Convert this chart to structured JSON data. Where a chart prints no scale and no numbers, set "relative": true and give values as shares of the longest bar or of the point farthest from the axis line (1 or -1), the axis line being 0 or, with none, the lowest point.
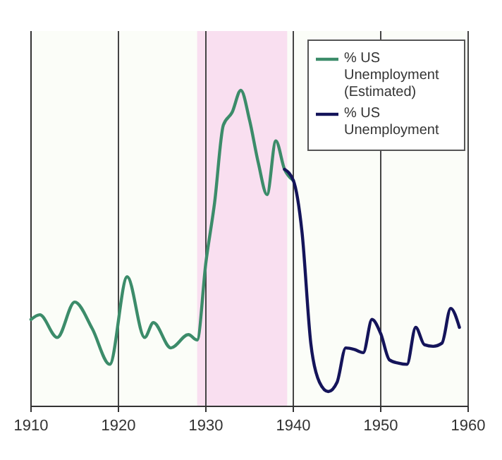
{
  "chart_data": {
    "type": "line",
    "relative": true,
    "xlim": [
      1910,
      1960
    ],
    "xticks": [
      1910,
      1920,
      1930,
      1940,
      1950,
      1960
    ],
    "grid": "x",
    "legend": "top right",
    "line_style": "solid",
    "marker": "none",
    "bands": [
      {
        "axis": "x",
        "from": 1929,
        "to": 1939.3,
        "color": "#f9dff0"
      }
    ],
    "series": [
      {
        "name": "% US Unemployment (Estimated)",
        "color": "#3c8c6a",
        "x": [
          1910,
          1911,
          1913,
          1915,
          1917,
          1919,
          1921,
          1923,
          1924,
          1926,
          1928,
          1929,
          1930,
          1931,
          1932,
          1933,
          1934,
          1935,
          1936,
          1937,
          1938,
          1939,
          1940
        ],
        "values": [
          0.275,
          0.29,
          0.218,
          0.33,
          0.246,
          0.133,
          0.41,
          0.218,
          0.265,
          0.185,
          0.227,
          0.21,
          0.455,
          0.645,
          0.89,
          0.93,
          1.0,
          0.905,
          0.77,
          0.67,
          0.84,
          0.75,
          0.715
        ]
      },
      {
        "name": "% US Unemployment",
        "color": "#14145a",
        "x": [
          1939,
          1940,
          1941,
          1942,
          1943,
          1944,
          1945,
          1946,
          1947,
          1948,
          1949,
          1950,
          1951,
          1952,
          1953,
          1954,
          1955,
          1956,
          1957,
          1958,
          1959
        ],
        "values": [
          0.75,
          0.715,
          0.55,
          0.2,
          0.076,
          0.047,
          0.076,
          0.185,
          0.18,
          0.17,
          0.275,
          0.23,
          0.147,
          0.137,
          0.133,
          0.25,
          0.195,
          0.19,
          0.2,
          0.31,
          0.25
        ]
      }
    ]
  }
}
